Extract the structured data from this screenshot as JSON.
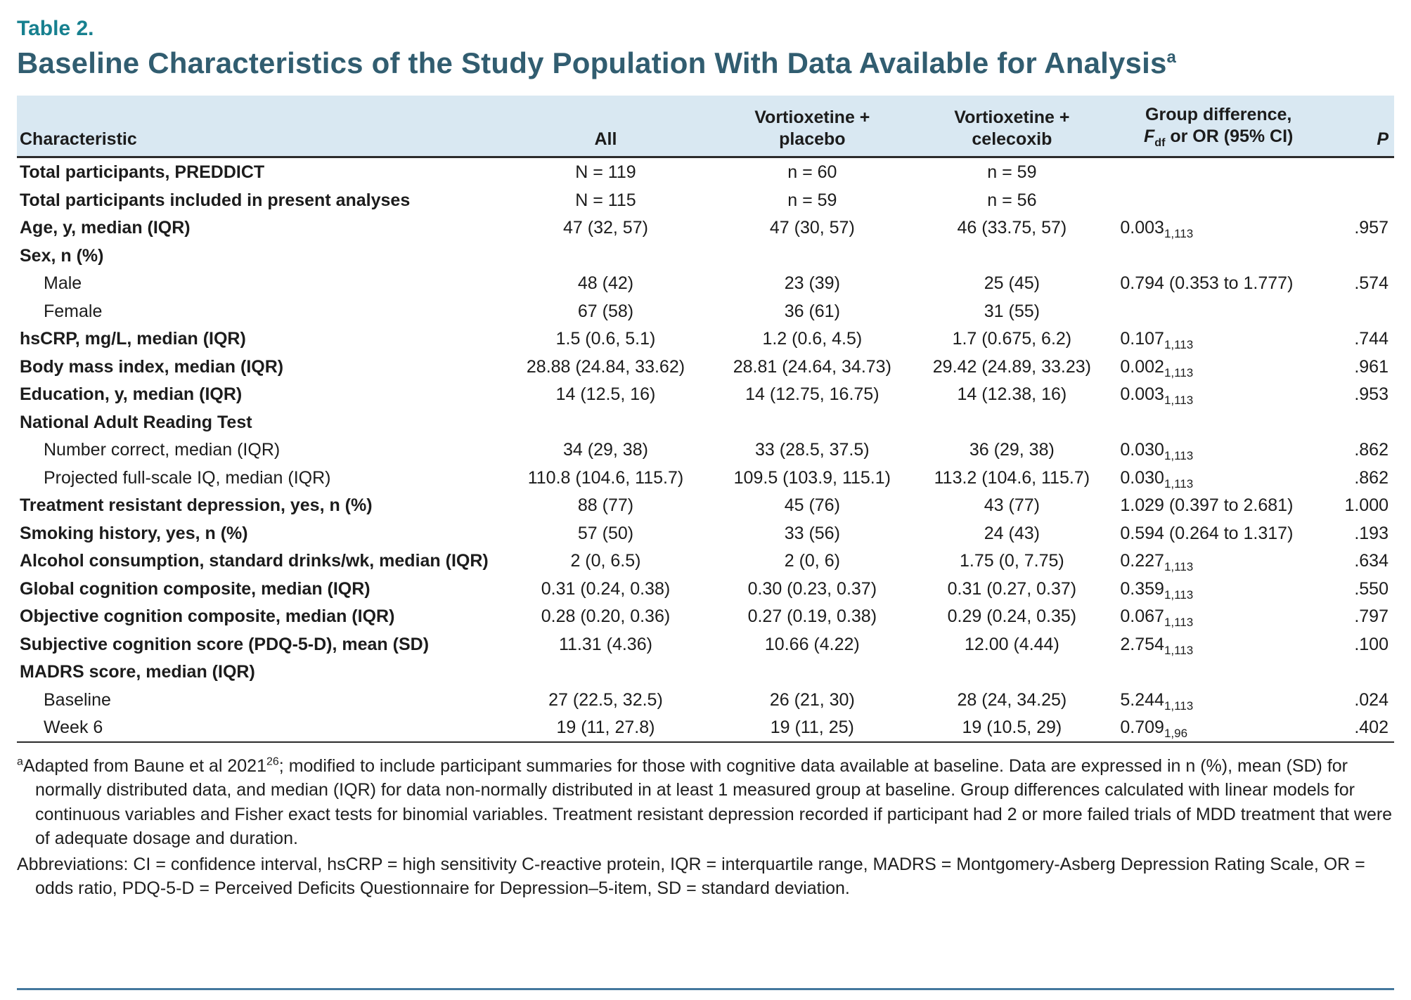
{
  "page": {
    "table_label": "Table 2.",
    "title": "Baseline Characteristics of the Study Population With Data Available for Analysis",
    "title_superscript": "a"
  },
  "table": {
    "columns": {
      "characteristic": "Characteristic",
      "all": "All",
      "placebo": "Vortioxetine +\nplacebo",
      "celecoxib": "Vortioxetine +\ncelecoxib",
      "diff_line1": "Group difference,",
      "diff_f": "F",
      "diff_f_sub": "df",
      "diff_rest": " or OR (95% CI)",
      "p": "P"
    },
    "rows": [
      {
        "label": "Total participants, PREDDICT",
        "indent": false,
        "all": "N = 119",
        "placebo": "n = 60",
        "celecoxib": "n = 59",
        "diff": "",
        "diff_sub": "",
        "p": ""
      },
      {
        "label": "Total participants included in present analyses",
        "indent": false,
        "all": "N = 115",
        "placebo": "n = 59",
        "celecoxib": "n = 56",
        "diff": "",
        "diff_sub": "",
        "p": ""
      },
      {
        "label": "Age, y, median (IQR)",
        "indent": false,
        "all": "47 (32, 57)",
        "placebo": "47 (30, 57)",
        "celecoxib": "46 (33.75, 57)",
        "diff": "0.003",
        "diff_sub": "1,113",
        "p": ".957"
      },
      {
        "label": "Sex, n (%)",
        "indent": false,
        "all": "",
        "placebo": "",
        "celecoxib": "",
        "diff": "",
        "diff_sub": "",
        "p": ""
      },
      {
        "label": "Male",
        "indent": true,
        "all": "48 (42)",
        "placebo": "23 (39)",
        "celecoxib": "25 (45)",
        "diff": "0.794 (0.353 to 1.777)",
        "diff_sub": "",
        "p": ".574"
      },
      {
        "label": "Female",
        "indent": true,
        "all": "67 (58)",
        "placebo": "36 (61)",
        "celecoxib": "31 (55)",
        "diff": "",
        "diff_sub": "",
        "p": ""
      },
      {
        "label": "hsCRP, mg/L, median (IQR)",
        "indent": false,
        "all": "1.5 (0.6, 5.1)",
        "placebo": "1.2 (0.6, 4.5)",
        "celecoxib": "1.7 (0.675, 6.2)",
        "diff": "0.107",
        "diff_sub": "1,113",
        "p": ".744"
      },
      {
        "label": "Body mass index, median (IQR)",
        "indent": false,
        "all": "28.88 (24.84, 33.62)",
        "placebo": "28.81 (24.64, 34.73)",
        "celecoxib": "29.42 (24.89, 33.23)",
        "diff": "0.002",
        "diff_sub": "1,113",
        "p": ".961"
      },
      {
        "label": "Education, y, median (IQR)",
        "indent": false,
        "all": "14 (12.5, 16)",
        "placebo": "14 (12.75, 16.75)",
        "celecoxib": "14 (12.38, 16)",
        "diff": "0.003",
        "diff_sub": "1,113",
        "p": ".953"
      },
      {
        "label": "National Adult Reading Test",
        "indent": false,
        "all": "",
        "placebo": "",
        "celecoxib": "",
        "diff": "",
        "diff_sub": "",
        "p": ""
      },
      {
        "label": "Number correct, median (IQR)",
        "indent": true,
        "all": "34 (29, 38)",
        "placebo": "33 (28.5, 37.5)",
        "celecoxib": "36 (29, 38)",
        "diff": "0.030",
        "diff_sub": "1,113",
        "p": ".862"
      },
      {
        "label": "Projected full-scale IQ, median (IQR)",
        "indent": true,
        "all": "110.8 (104.6, 115.7)",
        "placebo": "109.5 (103.9, 115.1)",
        "celecoxib": "113.2 (104.6, 115.7)",
        "diff": "0.030",
        "diff_sub": "1,113",
        "p": ".862"
      },
      {
        "label": "Treatment resistant depression, yes, n (%)",
        "indent": false,
        "all": "88 (77)",
        "placebo": "45 (76)",
        "celecoxib": "43 (77)",
        "diff": "1.029 (0.397 to 2.681)",
        "diff_sub": "",
        "p": "1.000"
      },
      {
        "label": "Smoking history, yes, n (%)",
        "indent": false,
        "all": "57 (50)",
        "placebo": "33 (56)",
        "celecoxib": "24 (43)",
        "diff": "0.594 (0.264 to 1.317)",
        "diff_sub": "",
        "p": ".193"
      },
      {
        "label": "Alcohol consumption, standard drinks/wk, median (IQR)",
        "indent": false,
        "all": "2 (0, 6.5)",
        "placebo": "2 (0, 6)",
        "celecoxib": "1.75 (0, 7.75)",
        "diff": "0.227",
        "diff_sub": "1,113",
        "p": ".634"
      },
      {
        "label": "Global cognition composite, median (IQR)",
        "indent": false,
        "all": "0.31 (0.24, 0.38)",
        "placebo": "0.30 (0.23, 0.37)",
        "celecoxib": "0.31 (0.27, 0.37)",
        "diff": "0.359",
        "diff_sub": "1,113",
        "p": ".550"
      },
      {
        "label": "Objective cognition composite, median (IQR)",
        "indent": false,
        "all": "0.28 (0.20, 0.36)",
        "placebo": "0.27 (0.19, 0.38)",
        "celecoxib": "0.29 (0.24, 0.35)",
        "diff": "0.067",
        "diff_sub": "1,113",
        "p": ".797"
      },
      {
        "label": "Subjective cognition score (PDQ-5-D), mean (SD)",
        "indent": false,
        "all": "11.31 (4.36)",
        "placebo": "10.66 (4.22)",
        "celecoxib": "12.00 (4.44)",
        "diff": "2.754",
        "diff_sub": "1,113",
        "p": ".100"
      },
      {
        "label": "MADRS score, median (IQR)",
        "indent": false,
        "all": "",
        "placebo": "",
        "celecoxib": "",
        "diff": "",
        "diff_sub": "",
        "p": ""
      },
      {
        "label": "Baseline",
        "indent": true,
        "all": "27 (22.5, 32.5)",
        "placebo": "26 (21, 30)",
        "celecoxib": "28 (24, 34.25)",
        "diff": "5.244",
        "diff_sub": "1,113",
        "p": ".024"
      },
      {
        "label": "Week 6",
        "indent": true,
        "all": "19 (11, 27.8)",
        "placebo": "19 (11, 25)",
        "celecoxib": "19 (10.5, 29)",
        "diff": "0.709",
        "diff_sub": "1,96",
        "p": ".402"
      }
    ]
  },
  "footnotes": {
    "a_marker": "a",
    "a_text1": "Adapted from Baune et al 2021",
    "a_ref": "26",
    "a_text2": "; modified to include participant summaries for those with cognitive data available at baseline. Data are expressed in n (%), mean (SD) for normally distributed data, and median (IQR) for data non-normally distributed in at least 1 measured group at baseline. Group differences calculated with linear models for continuous variables and Fisher exact tests for binomial variables. Treatment resistant depression recorded if participant had 2 or more failed trials of MDD treatment that were of adequate dosage and duration.",
    "abbreviations": "Abbreviations: CI = confidence interval, hsCRP = high sensitivity C-reactive protein, IQR = interquartile range, MADRS = Montgomery-Asberg Depression Rating Scale, OR = odds ratio, PDQ-5-D = Perceived Deficits Questionnaire for Depression–5-item, SD = standard deviation."
  }
}
